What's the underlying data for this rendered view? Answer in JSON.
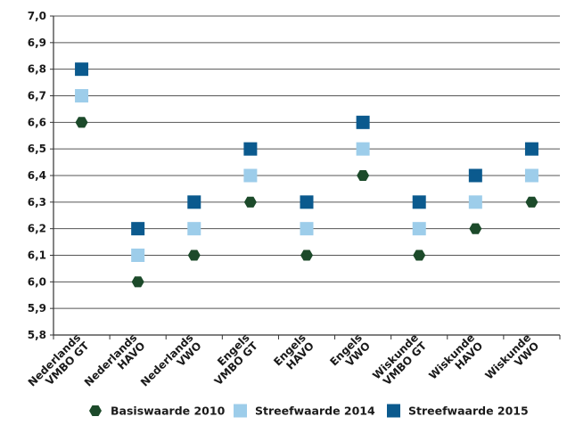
{
  "chart_data": {
    "type": "scatter",
    "categories": [
      [
        "Nederlands",
        "VMBO GT"
      ],
      [
        "Nederlands",
        "HAVO"
      ],
      [
        "Nederlands",
        "VWO"
      ],
      [
        "Engels",
        "VMBO GT"
      ],
      [
        "Engels",
        "HAVO"
      ],
      [
        "Engels",
        "VWO"
      ],
      [
        "Wiskunde",
        "VMBO GT"
      ],
      [
        "Wiskunde",
        "HAVO"
      ],
      [
        "Wiskunde",
        "VWO"
      ]
    ],
    "y_ticks": [
      "5,8",
      "5,9",
      "6,0",
      "6,1",
      "6,2",
      "6,3",
      "6,4",
      "6,5",
      "6,6",
      "6,7",
      "6,8",
      "6,9",
      "7,0"
    ],
    "ylim": [
      5.8,
      7.0
    ],
    "grid": true,
    "legend_position": "bottom",
    "series": [
      {
        "name": "Basiswaarde 2010",
        "marker": "hexagon",
        "color": "#1c4a2a",
        "values": [
          6.6,
          6.0,
          6.1,
          6.3,
          6.1,
          6.4,
          6.1,
          6.2,
          6.3
        ]
      },
      {
        "name": "Streefwaarde 2014",
        "marker": "square",
        "color": "#9dcdea",
        "values": [
          6.7,
          6.1,
          6.2,
          6.4,
          6.2,
          6.5,
          6.2,
          6.3,
          6.4
        ]
      },
      {
        "name": "Streefwaarde 2015",
        "marker": "square",
        "color": "#0b5a8e",
        "values": [
          6.8,
          6.2,
          6.3,
          6.5,
          6.3,
          6.6,
          6.3,
          6.4,
          6.5
        ]
      }
    ]
  }
}
